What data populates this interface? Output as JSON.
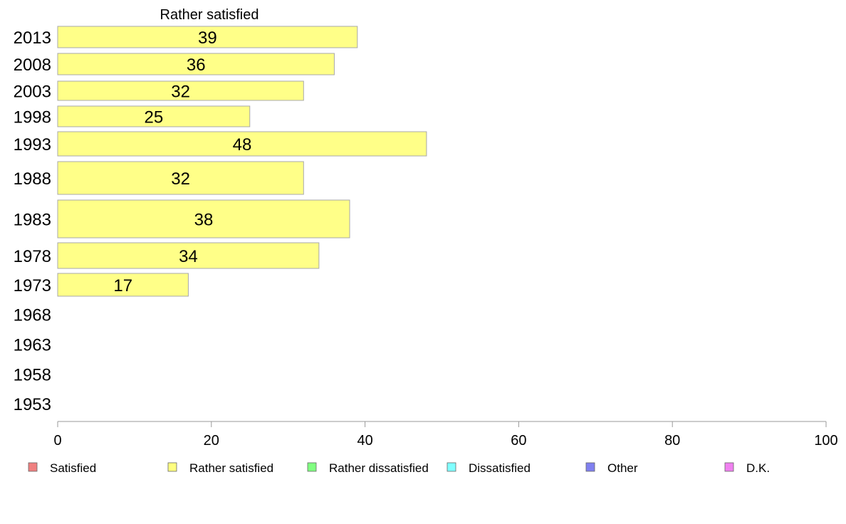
{
  "chart_data": {
    "type": "bar",
    "orientation": "horizontal",
    "title": "Rather satisfied",
    "categories": [
      "2013",
      "2008",
      "2003",
      "1998",
      "1993",
      "1988",
      "1983",
      "1978",
      "1973",
      "1968",
      "1963",
      "1958",
      "1953"
    ],
    "series": [
      {
        "name": "Rather satisfied",
        "color": "#ffff88",
        "values": [
          39,
          36,
          32,
          25,
          48,
          32,
          38,
          34,
          17,
          null,
          null,
          null,
          null
        ]
      }
    ],
    "xlim": [
      0,
      100
    ],
    "xticks": [
      0,
      20,
      40,
      60,
      80,
      100
    ],
    "grid": false,
    "legend_position": "bottom",
    "legend": [
      {
        "label": "Satisfied",
        "color": "#f08080"
      },
      {
        "label": "Rather satisfied",
        "color": "#ffff80"
      },
      {
        "label": "Rather dissatisfied",
        "color": "#80ff80"
      },
      {
        "label": "Dissatisfied",
        "color": "#80ffff"
      },
      {
        "label": "Other",
        "color": "#8080f0"
      },
      {
        "label": "D.K.",
        "color": "#f080f0"
      }
    ]
  }
}
